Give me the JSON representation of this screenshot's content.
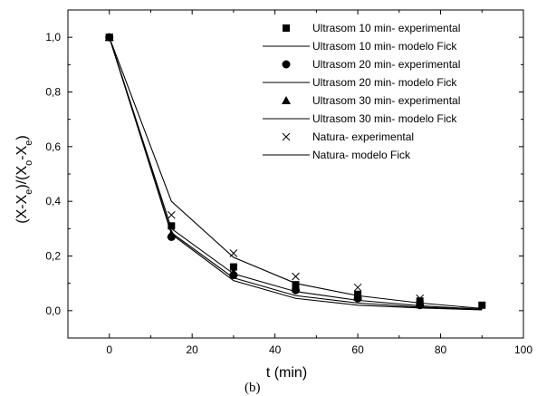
{
  "chart_data": {
    "type": "scatter",
    "title": "",
    "caption": "(b)",
    "xlabel": "t (min)",
    "ylabel": "(X-X_e)/(X_o-X_e)",
    "xlim": [
      -10,
      100
    ],
    "ylim": [
      -0.1,
      1.1
    ],
    "x_ticks": [
      0,
      20,
      40,
      60,
      80,
      100
    ],
    "x_tick_labels": [
      "0",
      "20",
      "40",
      "60",
      "80",
      "100"
    ],
    "y_ticks": [
      0.0,
      0.2,
      0.4,
      0.6,
      0.8,
      1.0
    ],
    "y_tick_labels": [
      "0,0",
      "0,2",
      "0,4",
      "0,6",
      "0,8",
      "1,0"
    ],
    "grid": false,
    "legend_position": "top-right",
    "series": [
      {
        "name": "Ultrasom 10 min- experimental",
        "kind": "points",
        "marker": "square",
        "x": [
          0,
          15,
          30,
          45,
          60,
          75,
          90
        ],
        "y": [
          1.0,
          0.31,
          0.16,
          0.095,
          0.06,
          0.035,
          0.02
        ]
      },
      {
        "name": "Ultrasom 10 min- modelo Fick",
        "kind": "line",
        "x": [
          0,
          15,
          30,
          45,
          60,
          75,
          90
        ],
        "y": [
          1.0,
          0.3,
          0.135,
          0.07,
          0.038,
          0.018,
          0.005
        ]
      },
      {
        "name": "Ultrasom 20 min- experimental",
        "kind": "points",
        "marker": "circle",
        "x": [
          0,
          15,
          30,
          45,
          60,
          75
        ],
        "y": [
          1.0,
          0.27,
          0.13,
          0.075,
          0.045,
          0.02
        ]
      },
      {
        "name": "Ultrasom 20 min- modelo Fick",
        "kind": "line",
        "x": [
          0,
          15,
          30,
          45,
          60,
          75,
          90
        ],
        "y": [
          1.0,
          0.285,
          0.12,
          0.055,
          0.028,
          0.013,
          0.004
        ]
      },
      {
        "name": "Ultrasom 30 min- experimental",
        "kind": "points",
        "marker": "triangle",
        "x": [
          0,
          15,
          30,
          45,
          60,
          75
        ],
        "y": [
          1.0,
          0.28,
          0.14,
          0.085,
          0.05,
          0.025
        ]
      },
      {
        "name": "Ultrasom 30 min- modelo Fick",
        "kind": "line",
        "x": [
          0,
          15,
          30,
          45,
          60,
          75,
          90
        ],
        "y": [
          1.0,
          0.28,
          0.11,
          0.045,
          0.02,
          0.01,
          0.003
        ]
      },
      {
        "name": "Natura- experimental",
        "kind": "points",
        "marker": "cross",
        "x": [
          0,
          15,
          30,
          45,
          60,
          75
        ],
        "y": [
          1.0,
          0.35,
          0.21,
          0.125,
          0.085,
          0.045
        ]
      },
      {
        "name": "Natura- modelo Fick",
        "kind": "line",
        "x": [
          0,
          15,
          30,
          45,
          60,
          75,
          90
        ],
        "y": [
          1.0,
          0.4,
          0.195,
          0.1,
          0.055,
          0.028,
          0.008
        ]
      }
    ]
  }
}
